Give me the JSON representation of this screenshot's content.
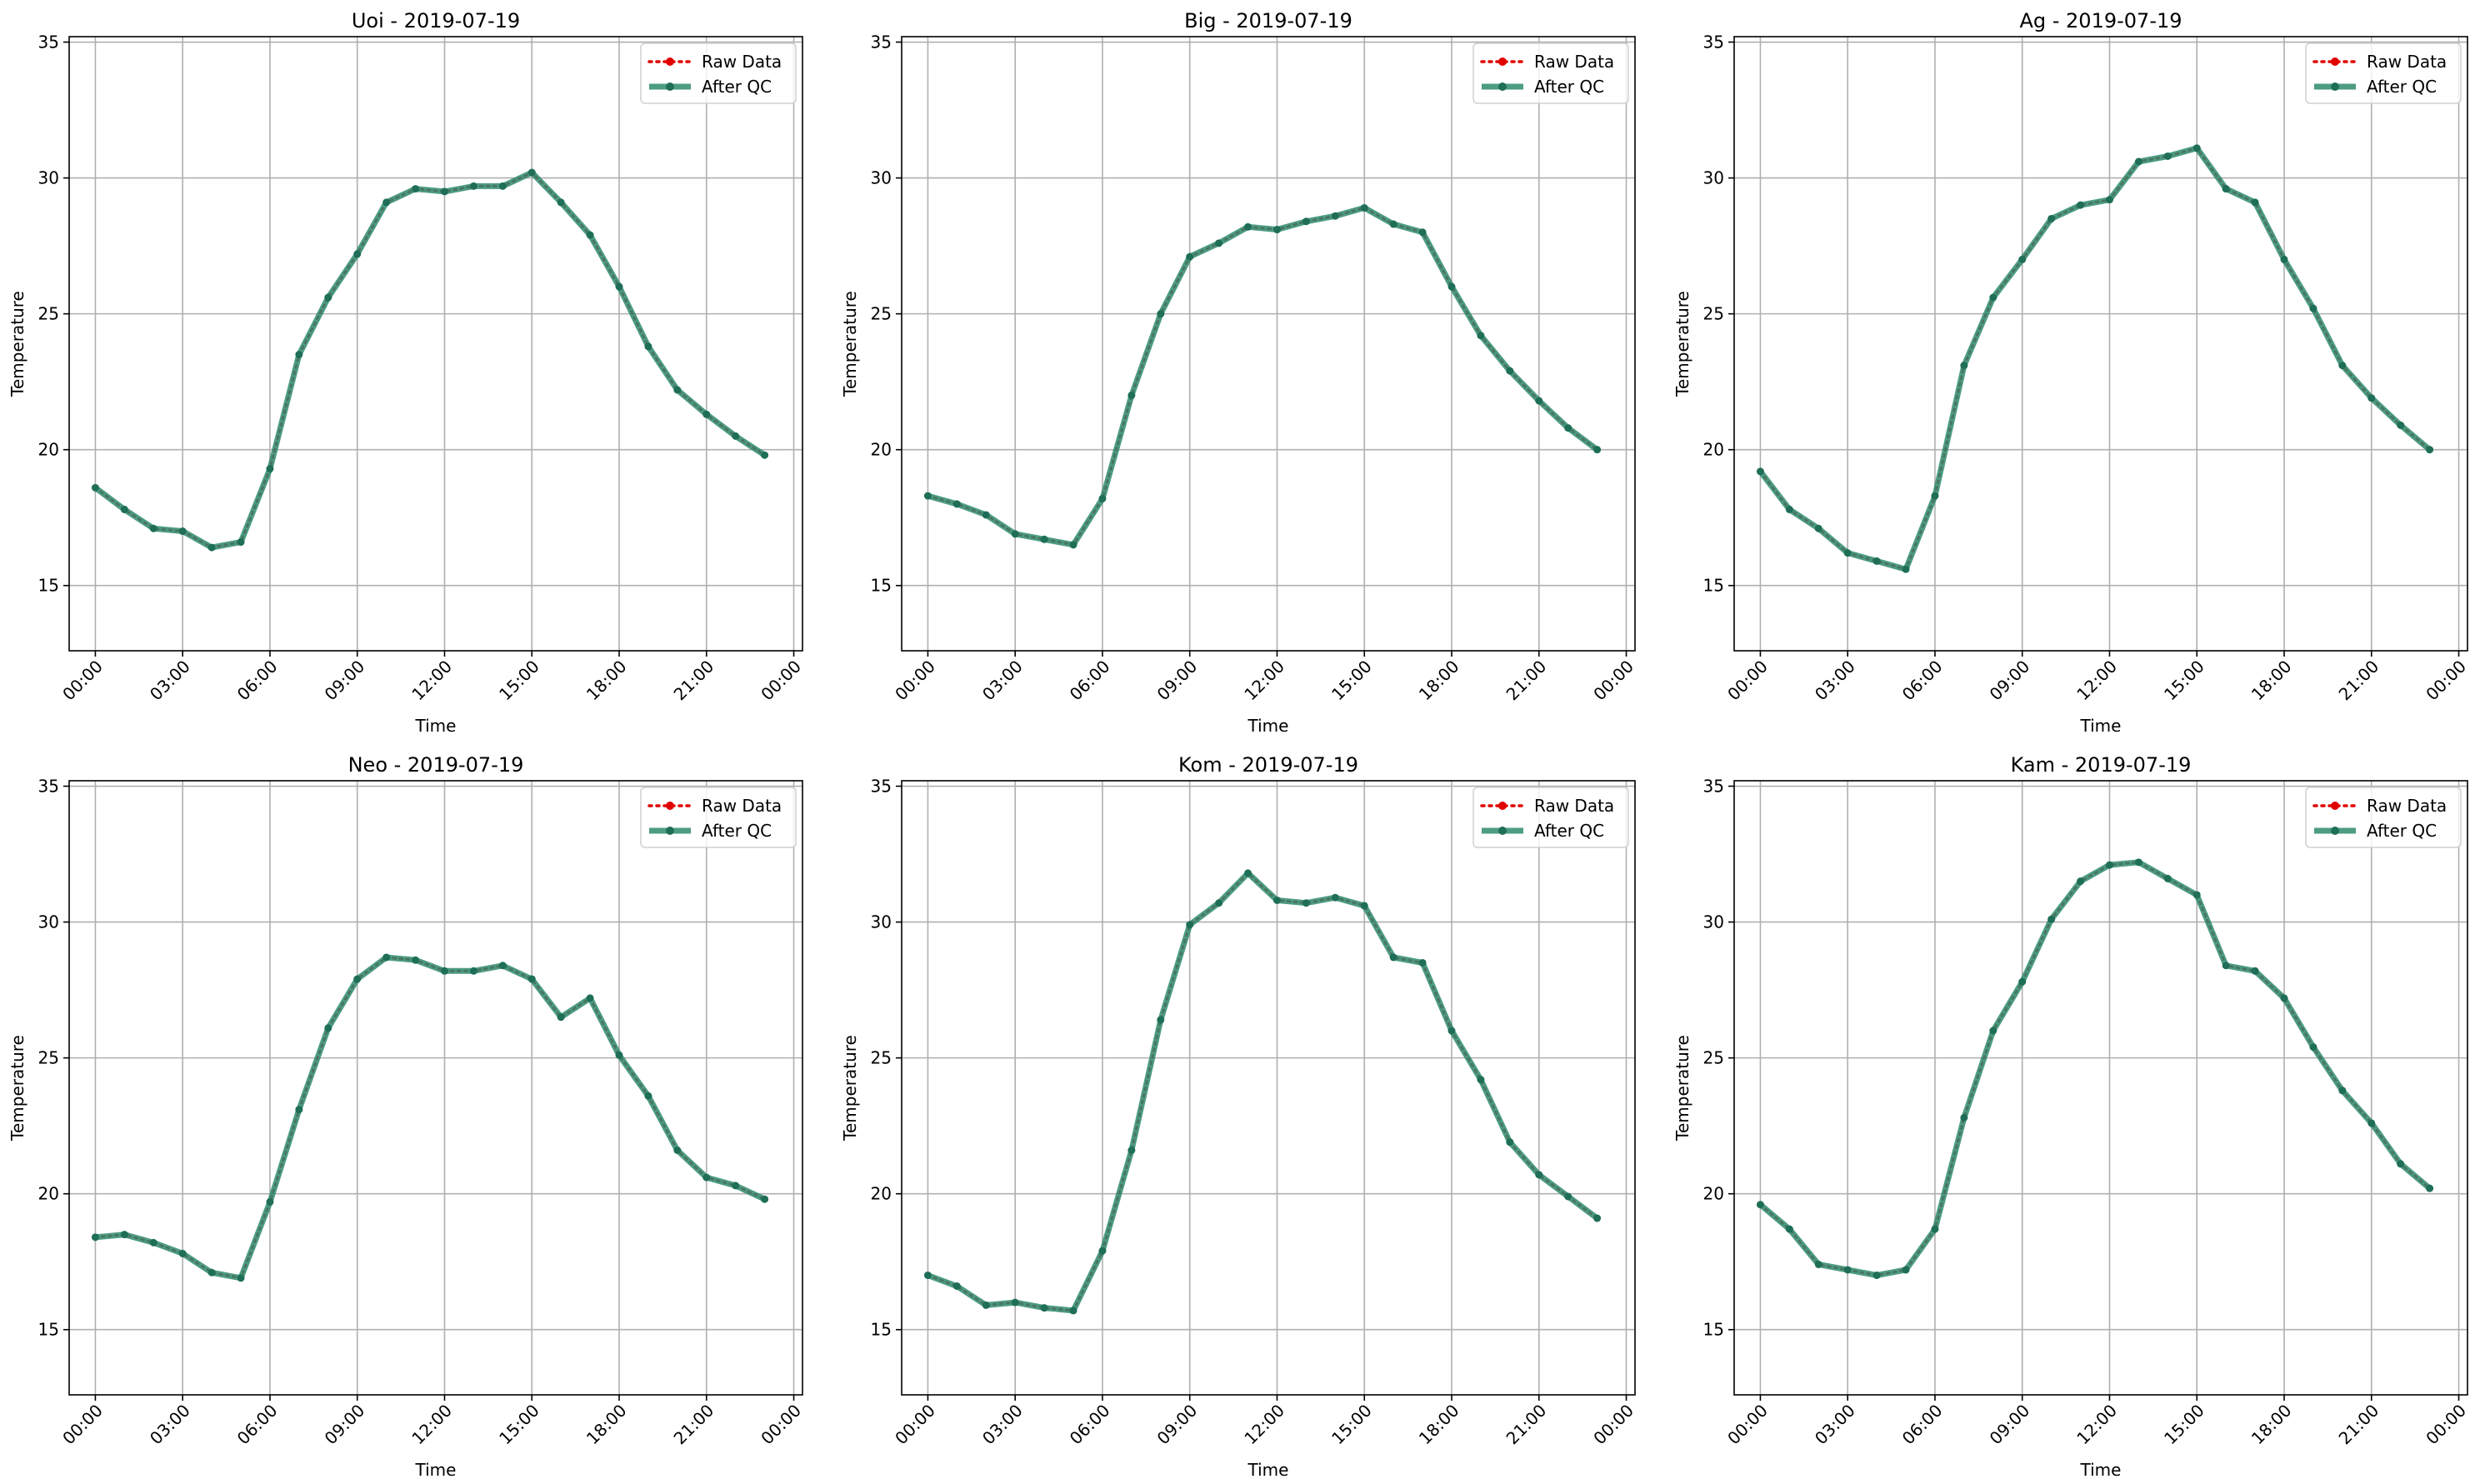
{
  "figure": {
    "legend_placement": "top-right",
    "grid": true,
    "colors": {
      "raw": "#e00000",
      "qc": "#2e8b6e",
      "qc_dot": "#1f6e58",
      "grid": "#b0b0b0"
    }
  },
  "chart_data": [
    {
      "type": "line",
      "title": "Uoi - 2019-07-19",
      "xlabel": "Time",
      "ylabel": "Temperature",
      "xlim": [
        -0.9,
        24.3
      ],
      "ylim": [
        12.6,
        35.2
      ],
      "yticks": [
        15,
        20,
        25,
        30,
        35
      ],
      "xticks": [
        0,
        3,
        6,
        9,
        12,
        15,
        18,
        21,
        24
      ],
      "xtick_labels": [
        "00:00",
        "03:00",
        "06:00",
        "09:00",
        "12:00",
        "15:00",
        "18:00",
        "21:00",
        "00:00"
      ],
      "x": [
        0,
        1,
        2,
        3,
        4,
        5,
        6,
        7,
        8,
        9,
        10,
        11,
        12,
        13,
        14,
        15,
        16,
        17,
        18,
        19,
        20,
        21,
        22,
        23
      ],
      "series": [
        {
          "name": "Raw Data",
          "values": [
            18.6,
            17.8,
            17.1,
            17.0,
            16.4,
            16.6,
            19.3,
            23.5,
            25.6,
            27.2,
            29.1,
            29.6,
            29.5,
            29.7,
            29.7,
            30.2,
            29.1,
            27.9,
            26.0,
            23.8,
            22.2,
            21.3,
            20.5,
            19.8
          ]
        },
        {
          "name": "After QC",
          "values": [
            18.6,
            17.8,
            17.1,
            17.0,
            16.4,
            16.6,
            19.3,
            23.5,
            25.6,
            27.2,
            29.1,
            29.6,
            29.5,
            29.7,
            29.7,
            30.2,
            29.1,
            27.9,
            26.0,
            23.8,
            22.2,
            21.3,
            20.5,
            19.8
          ]
        }
      ]
    },
    {
      "type": "line",
      "title": "Big - 2019-07-19",
      "xlabel": "Time",
      "ylabel": "Temperature",
      "xlim": [
        -0.9,
        24.3
      ],
      "ylim": [
        12.6,
        35.2
      ],
      "yticks": [
        15,
        20,
        25,
        30,
        35
      ],
      "xticks": [
        0,
        3,
        6,
        9,
        12,
        15,
        18,
        21,
        24
      ],
      "xtick_labels": [
        "00:00",
        "03:00",
        "06:00",
        "09:00",
        "12:00",
        "15:00",
        "18:00",
        "21:00",
        "00:00"
      ],
      "x": [
        0,
        1,
        2,
        3,
        4,
        5,
        6,
        7,
        8,
        9,
        10,
        11,
        12,
        13,
        14,
        15,
        16,
        17,
        18,
        19,
        20,
        21,
        22,
        23
      ],
      "series": [
        {
          "name": "Raw Data",
          "values": [
            18.3,
            18.0,
            17.6,
            16.9,
            16.7,
            16.5,
            18.2,
            22.0,
            25.0,
            27.1,
            27.6,
            28.2,
            28.1,
            28.4,
            28.6,
            28.9,
            28.3,
            28.0,
            26.0,
            24.2,
            22.9,
            21.8,
            20.8,
            20.0
          ]
        },
        {
          "name": "After QC",
          "values": [
            18.3,
            18.0,
            17.6,
            16.9,
            16.7,
            16.5,
            18.2,
            22.0,
            25.0,
            27.1,
            27.6,
            28.2,
            28.1,
            28.4,
            28.6,
            28.9,
            28.3,
            28.0,
            26.0,
            24.2,
            22.9,
            21.8,
            20.8,
            20.0
          ]
        }
      ]
    },
    {
      "type": "line",
      "title": "Ag - 2019-07-19",
      "xlabel": "Time",
      "ylabel": "Temperature",
      "xlim": [
        -0.9,
        24.3
      ],
      "ylim": [
        12.6,
        35.2
      ],
      "yticks": [
        15,
        20,
        25,
        30,
        35
      ],
      "xticks": [
        0,
        3,
        6,
        9,
        12,
        15,
        18,
        21,
        24
      ],
      "xtick_labels": [
        "00:00",
        "03:00",
        "06:00",
        "09:00",
        "12:00",
        "15:00",
        "18:00",
        "21:00",
        "00:00"
      ],
      "x": [
        0,
        1,
        2,
        3,
        4,
        5,
        6,
        7,
        8,
        9,
        10,
        11,
        12,
        13,
        14,
        15,
        16,
        17,
        18,
        19,
        20,
        21,
        22,
        23
      ],
      "series": [
        {
          "name": "Raw Data",
          "values": [
            19.2,
            17.8,
            17.1,
            16.2,
            15.9,
            15.6,
            18.3,
            23.1,
            25.6,
            27.0,
            28.5,
            29.0,
            29.2,
            30.6,
            30.8,
            31.1,
            29.6,
            29.1,
            27.0,
            25.2,
            23.1,
            21.9,
            20.9,
            20.0
          ]
        },
        {
          "name": "After QC",
          "values": [
            19.2,
            17.8,
            17.1,
            16.2,
            15.9,
            15.6,
            18.3,
            23.1,
            25.6,
            27.0,
            28.5,
            29.0,
            29.2,
            30.6,
            30.8,
            31.1,
            29.6,
            29.1,
            27.0,
            25.2,
            23.1,
            21.9,
            20.9,
            20.0
          ]
        }
      ]
    },
    {
      "type": "line",
      "title": "Neo - 2019-07-19",
      "xlabel": "Time",
      "ylabel": "Temperature",
      "xlim": [
        -0.9,
        24.3
      ],
      "ylim": [
        12.6,
        35.2
      ],
      "yticks": [
        15,
        20,
        25,
        30,
        35
      ],
      "xticks": [
        0,
        3,
        6,
        9,
        12,
        15,
        18,
        21,
        24
      ],
      "xtick_labels": [
        "00:00",
        "03:00",
        "06:00",
        "09:00",
        "12:00",
        "15:00",
        "18:00",
        "21:00",
        "00:00"
      ],
      "x": [
        0,
        1,
        2,
        3,
        4,
        5,
        6,
        7,
        8,
        9,
        10,
        11,
        12,
        13,
        14,
        15,
        16,
        17,
        18,
        19,
        20,
        21,
        22,
        23
      ],
      "series": [
        {
          "name": "Raw Data",
          "values": [
            18.4,
            18.5,
            18.2,
            17.8,
            17.1,
            16.9,
            19.7,
            23.1,
            26.1,
            27.9,
            28.7,
            28.6,
            28.2,
            28.2,
            28.4,
            27.9,
            26.5,
            27.2,
            25.1,
            23.6,
            21.6,
            20.6,
            20.3,
            19.8
          ]
        },
        {
          "name": "After QC",
          "values": [
            18.4,
            18.5,
            18.2,
            17.8,
            17.1,
            16.9,
            19.7,
            23.1,
            26.1,
            27.9,
            28.7,
            28.6,
            28.2,
            28.2,
            28.4,
            27.9,
            26.5,
            27.2,
            25.1,
            23.6,
            21.6,
            20.6,
            20.3,
            19.8
          ]
        }
      ]
    },
    {
      "type": "line",
      "title": "Kom - 2019-07-19",
      "xlabel": "Time",
      "ylabel": "Temperature",
      "xlim": [
        -0.9,
        24.3
      ],
      "ylim": [
        12.6,
        35.2
      ],
      "yticks": [
        15,
        20,
        25,
        30,
        35
      ],
      "xticks": [
        0,
        3,
        6,
        9,
        12,
        15,
        18,
        21,
        24
      ],
      "xtick_labels": [
        "00:00",
        "03:00",
        "06:00",
        "09:00",
        "12:00",
        "15:00",
        "18:00",
        "21:00",
        "00:00"
      ],
      "x": [
        0,
        1,
        2,
        3,
        4,
        5,
        6,
        7,
        8,
        9,
        10,
        11,
        12,
        13,
        14,
        15,
        16,
        17,
        18,
        19,
        20,
        21,
        22,
        23
      ],
      "series": [
        {
          "name": "Raw Data",
          "values": [
            17.0,
            16.6,
            15.9,
            16.0,
            15.8,
            15.7,
            17.9,
            21.6,
            26.4,
            29.9,
            30.7,
            31.8,
            30.8,
            30.7,
            30.9,
            30.6,
            28.7,
            28.5,
            26.0,
            24.2,
            21.9,
            20.7,
            19.9,
            19.1
          ]
        },
        {
          "name": "After QC",
          "values": [
            17.0,
            16.6,
            15.9,
            16.0,
            15.8,
            15.7,
            17.9,
            21.6,
            26.4,
            29.9,
            30.7,
            31.8,
            30.8,
            30.7,
            30.9,
            30.6,
            28.7,
            28.5,
            26.0,
            24.2,
            21.9,
            20.7,
            19.9,
            19.1
          ]
        }
      ]
    },
    {
      "type": "line",
      "title": "Kam - 2019-07-19",
      "xlabel": "Time",
      "ylabel": "Temperature",
      "xlim": [
        -0.9,
        24.3
      ],
      "ylim": [
        12.6,
        35.2
      ],
      "yticks": [
        15,
        20,
        25,
        30,
        35
      ],
      "xticks": [
        0,
        3,
        6,
        9,
        12,
        15,
        18,
        21,
        24
      ],
      "xtick_labels": [
        "00:00",
        "03:00",
        "06:00",
        "09:00",
        "12:00",
        "15:00",
        "18:00",
        "21:00",
        "00:00"
      ],
      "x": [
        0,
        1,
        2,
        3,
        4,
        5,
        6,
        7,
        8,
        9,
        10,
        11,
        12,
        13,
        14,
        15,
        16,
        17,
        18,
        19,
        20,
        21,
        22,
        23
      ],
      "series": [
        {
          "name": "Raw Data",
          "values": [
            19.6,
            18.7,
            17.4,
            17.2,
            17.0,
            17.2,
            18.7,
            22.8,
            26.0,
            27.8,
            30.1,
            31.5,
            32.1,
            32.2,
            31.6,
            31.0,
            28.4,
            28.2,
            27.2,
            25.4,
            23.8,
            22.6,
            21.1,
            20.2
          ]
        },
        {
          "name": "After QC",
          "values": [
            19.6,
            18.7,
            17.4,
            17.2,
            17.0,
            17.2,
            18.7,
            22.8,
            26.0,
            27.8,
            30.1,
            31.5,
            32.1,
            32.2,
            31.6,
            31.0,
            28.4,
            28.2,
            27.2,
            25.4,
            23.8,
            22.6,
            21.1,
            20.2
          ]
        }
      ]
    }
  ]
}
